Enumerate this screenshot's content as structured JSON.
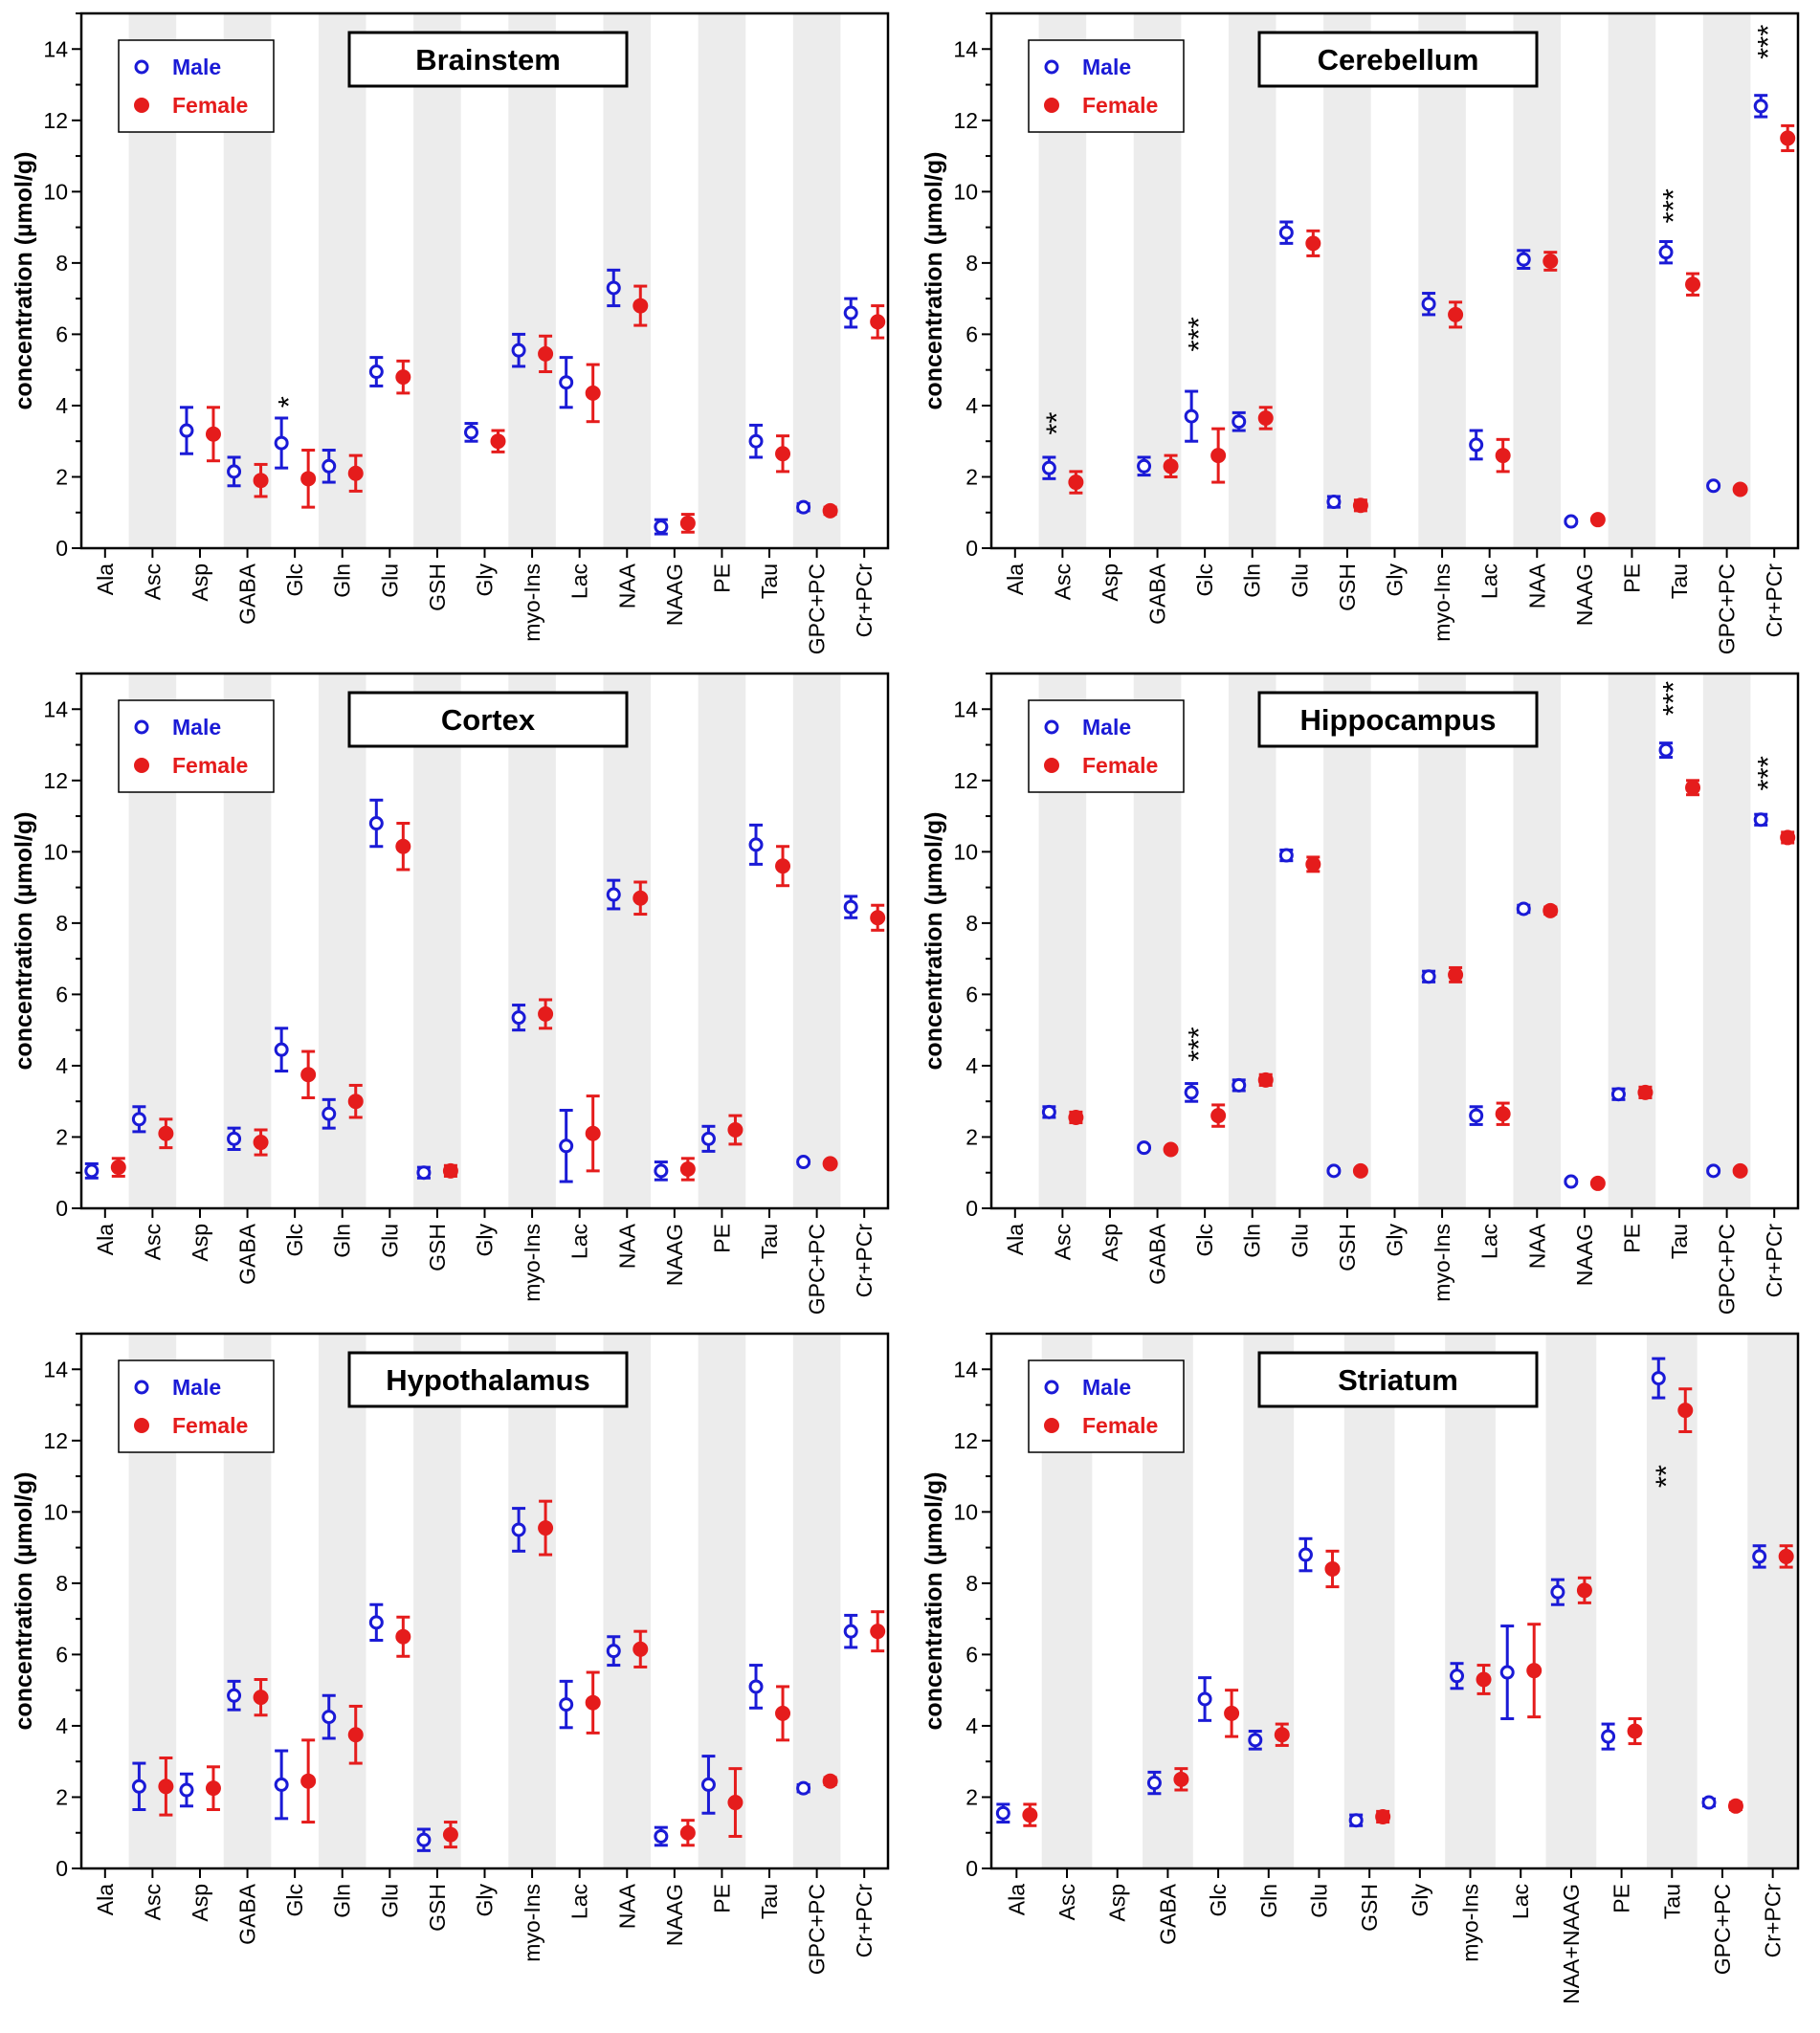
{
  "legend": {
    "male": "Male",
    "female": "Female"
  },
  "colors": {
    "male": "#1a1ad6",
    "female": "#e51c1c",
    "band": "#ececec",
    "axis": "#000000"
  },
  "chart_data": [
    {
      "type": "scatter",
      "title": "Brainstem",
      "ylabel": "concentration (µmol/g)",
      "ylim": [
        0,
        15
      ],
      "yticks": [
        0,
        2,
        4,
        6,
        8,
        10,
        12,
        14
      ],
      "categories": [
        "Ala",
        "Asc",
        "Asp",
        "GABA",
        "Glc",
        "Gln",
        "Glu",
        "GSH",
        "Gly",
        "myo-Ins",
        "Lac",
        "NAA",
        "NAAG",
        "PE",
        "Tau",
        "GPC+PC",
        "Cr+PCr"
      ],
      "series": [
        {
          "name": "Male",
          "values": [
            null,
            null,
            3.3,
            2.15,
            2.95,
            2.3,
            4.95,
            null,
            3.25,
            5.55,
            4.65,
            7.3,
            0.6,
            null,
            3.0,
            1.15,
            6.6
          ],
          "err": [
            0,
            0,
            0.65,
            0.4,
            0.7,
            0.45,
            0.4,
            0,
            0.25,
            0.45,
            0.7,
            0.5,
            0.2,
            0,
            0.45,
            0.1,
            0.4
          ]
        },
        {
          "name": "Female",
          "values": [
            null,
            null,
            3.2,
            1.9,
            1.95,
            2.1,
            4.8,
            null,
            3.0,
            5.45,
            4.35,
            6.8,
            0.7,
            null,
            2.65,
            1.05,
            6.35
          ],
          "err": [
            0,
            0,
            0.75,
            0.45,
            0.8,
            0.5,
            0.45,
            0,
            0.3,
            0.5,
            0.8,
            0.55,
            0.25,
            0,
            0.5,
            0.1,
            0.45
          ]
        }
      ],
      "annotations": [
        {
          "category": "Glc",
          "text": "*",
          "y": 4.1
        }
      ],
      "legend_position": "top-left"
    },
    {
      "type": "scatter",
      "title": "Cerebellum",
      "ylabel": "concentration (µmol/g)",
      "ylim": [
        0,
        15
      ],
      "yticks": [
        0,
        2,
        4,
        6,
        8,
        10,
        12,
        14
      ],
      "categories": [
        "Ala",
        "Asc",
        "Asp",
        "GABA",
        "Glc",
        "Gln",
        "Glu",
        "GSH",
        "Gly",
        "myo-Ins",
        "Lac",
        "NAA",
        "NAAG",
        "PE",
        "Tau",
        "GPC+PC",
        "Cr+PCr"
      ],
      "series": [
        {
          "name": "Male",
          "values": [
            null,
            2.25,
            null,
            2.3,
            3.7,
            3.55,
            8.85,
            1.3,
            null,
            6.85,
            2.9,
            8.1,
            0.75,
            null,
            8.3,
            1.75,
            12.4
          ],
          "err": [
            0,
            0.3,
            0,
            0.25,
            0.7,
            0.25,
            0.3,
            0.15,
            0,
            0.3,
            0.4,
            0.25,
            0.05,
            0,
            0.3,
            0.05,
            0.3
          ]
        },
        {
          "name": "Female",
          "values": [
            null,
            1.85,
            null,
            2.3,
            2.6,
            3.65,
            8.55,
            1.2,
            null,
            6.55,
            2.6,
            8.05,
            0.8,
            null,
            7.4,
            1.65,
            11.5
          ],
          "err": [
            0,
            0.3,
            0,
            0.3,
            0.75,
            0.3,
            0.35,
            0.15,
            0,
            0.35,
            0.45,
            0.25,
            0.05,
            0,
            0.3,
            0.05,
            0.35
          ]
        }
      ],
      "annotations": [
        {
          "category": "Asc",
          "text": "**",
          "y": 3.5
        },
        {
          "category": "Glc",
          "text": "***",
          "y": 6.0
        },
        {
          "category": "Tau",
          "text": "***",
          "y": 9.6
        },
        {
          "category": "Cr+PCr",
          "text": "***",
          "y": 14.2
        }
      ],
      "legend_position": "top-left"
    },
    {
      "type": "scatter",
      "title": "Cortex",
      "ylabel": "concentration (µmol/g)",
      "ylim": [
        0,
        15
      ],
      "yticks": [
        0,
        2,
        4,
        6,
        8,
        10,
        12,
        14
      ],
      "categories": [
        "Ala",
        "Asc",
        "Asp",
        "GABA",
        "Glc",
        "Gln",
        "Glu",
        "GSH",
        "Gly",
        "myo-Ins",
        "Lac",
        "NAA",
        "NAAG",
        "PE",
        "Tau",
        "GPC+PC",
        "Cr+PCr"
      ],
      "series": [
        {
          "name": "Male",
          "values": [
            1.05,
            2.5,
            null,
            1.95,
            4.45,
            2.65,
            10.8,
            1.0,
            null,
            5.35,
            1.75,
            8.8,
            1.05,
            1.95,
            10.2,
            1.3,
            8.45
          ],
          "err": [
            0.2,
            0.35,
            0,
            0.3,
            0.6,
            0.4,
            0.65,
            0.15,
            0,
            0.35,
            1.0,
            0.4,
            0.25,
            0.35,
            0.55,
            0.05,
            0.3
          ]
        },
        {
          "name": "Female",
          "values": [
            1.15,
            2.1,
            null,
            1.85,
            3.75,
            3.0,
            10.15,
            1.05,
            null,
            5.45,
            2.1,
            8.7,
            1.1,
            2.2,
            9.6,
            1.25,
            8.15
          ],
          "err": [
            0.25,
            0.4,
            0,
            0.35,
            0.65,
            0.45,
            0.65,
            0.15,
            0,
            0.4,
            1.05,
            0.45,
            0.3,
            0.4,
            0.55,
            0.05,
            0.35
          ]
        }
      ],
      "annotations": [],
      "legend_position": "top-left"
    },
    {
      "type": "scatter",
      "title": "Hippocampus",
      "ylabel": "concentration (µmol/g)",
      "ylim": [
        0,
        15
      ],
      "yticks": [
        0,
        2,
        4,
        6,
        8,
        10,
        12,
        14
      ],
      "categories": [
        "Ala",
        "Asc",
        "Asp",
        "GABA",
        "Glc",
        "Gln",
        "Glu",
        "GSH",
        "Gly",
        "myo-Ins",
        "Lac",
        "NAA",
        "NAAG",
        "PE",
        "Tau",
        "GPC+PC",
        "Cr+PCr"
      ],
      "series": [
        {
          "name": "Male",
          "values": [
            null,
            2.7,
            null,
            1.7,
            3.25,
            3.45,
            9.9,
            1.05,
            null,
            6.5,
            2.6,
            8.4,
            0.75,
            3.2,
            12.85,
            1.05,
            10.9
          ],
          "err": [
            0,
            0.15,
            0,
            0.05,
            0.25,
            0.15,
            0.15,
            0.05,
            0,
            0.15,
            0.25,
            0.1,
            0.05,
            0.15,
            0.2,
            0.05,
            0.15
          ]
        },
        {
          "name": "Female",
          "values": [
            null,
            2.55,
            null,
            1.65,
            2.6,
            3.6,
            9.65,
            1.05,
            null,
            6.55,
            2.65,
            8.35,
            0.7,
            3.25,
            11.8,
            1.05,
            10.4
          ],
          "err": [
            0,
            0.15,
            0,
            0.05,
            0.3,
            0.15,
            0.2,
            0.05,
            0,
            0.2,
            0.3,
            0.1,
            0.05,
            0.15,
            0.2,
            0.05,
            0.15
          ]
        }
      ],
      "annotations": [
        {
          "category": "Glc",
          "text": "***",
          "y": 4.6
        },
        {
          "category": "Tau",
          "text": "***",
          "y": 14.3
        },
        {
          "category": "Cr+PCr",
          "text": "***",
          "y": 12.2
        }
      ],
      "legend_position": "top-left"
    },
    {
      "type": "scatter",
      "title": "Hypothalamus",
      "ylabel": "concentration (µmol/g)",
      "ylim": [
        0,
        15
      ],
      "yticks": [
        0,
        2,
        4,
        6,
        8,
        10,
        12,
        14
      ],
      "categories": [
        "Ala",
        "Asc",
        "Asp",
        "GABA",
        "Glc",
        "Gln",
        "Glu",
        "GSH",
        "Gly",
        "myo-Ins",
        "Lac",
        "NAA",
        "NAAG",
        "PE",
        "Tau",
        "GPC+PC",
        "Cr+PCr"
      ],
      "series": [
        {
          "name": "Male",
          "values": [
            null,
            2.3,
            2.2,
            4.85,
            2.35,
            4.25,
            6.9,
            0.8,
            null,
            9.5,
            4.6,
            6.1,
            0.9,
            2.35,
            5.1,
            2.25,
            6.65
          ],
          "err": [
            0,
            0.65,
            0.45,
            0.4,
            0.95,
            0.6,
            0.5,
            0.3,
            0,
            0.6,
            0.65,
            0.4,
            0.25,
            0.8,
            0.6,
            0.1,
            0.45
          ]
        },
        {
          "name": "Female",
          "values": [
            null,
            2.3,
            2.25,
            4.8,
            2.45,
            3.75,
            6.5,
            0.95,
            null,
            9.55,
            4.65,
            6.15,
            1.0,
            1.85,
            4.35,
            2.45,
            6.65
          ],
          "err": [
            0,
            0.8,
            0.6,
            0.5,
            1.15,
            0.8,
            0.55,
            0.35,
            0,
            0.75,
            0.85,
            0.5,
            0.35,
            0.95,
            0.75,
            0.1,
            0.55
          ]
        }
      ],
      "annotations": [],
      "legend_position": "top-left"
    },
    {
      "type": "scatter",
      "title": "Striatum",
      "ylabel": "concentration (µmol/g)",
      "ylim": [
        0,
        15
      ],
      "yticks": [
        0,
        2,
        4,
        6,
        8,
        10,
        12,
        14
      ],
      "categories": [
        "Ala",
        "Asc",
        "Asp",
        "GABA",
        "Glc",
        "Gln",
        "Glu",
        "GSH",
        "Gly",
        "myo-Ins",
        "Lac",
        "NAA+NAAG",
        "PE",
        "Tau",
        "GPC+PC",
        "Cr+PCr"
      ],
      "series": [
        {
          "name": "Male",
          "values": [
            1.55,
            null,
            null,
            2.4,
            4.75,
            3.6,
            8.8,
            1.35,
            null,
            5.4,
            5.5,
            7.75,
            3.7,
            13.75,
            1.85,
            8.75
          ],
          "err": [
            0.25,
            0,
            0,
            0.3,
            0.6,
            0.25,
            0.45,
            0.15,
            0,
            0.35,
            1.3,
            0.35,
            0.35,
            0.55,
            0.1,
            0.3
          ]
        },
        {
          "name": "Female",
          "values": [
            1.5,
            null,
            null,
            2.5,
            4.35,
            3.75,
            8.4,
            1.45,
            null,
            5.3,
            5.55,
            7.8,
            3.85,
            12.85,
            1.75,
            8.75
          ],
          "err": [
            0.3,
            0,
            0,
            0.3,
            0.65,
            0.3,
            0.5,
            0.15,
            0,
            0.4,
            1.3,
            0.35,
            0.35,
            0.6,
            0.1,
            0.3
          ]
        }
      ],
      "annotations": [
        {
          "category": "Tau",
          "text": "**",
          "y": 11.0
        }
      ],
      "legend_position": "top-left"
    }
  ]
}
